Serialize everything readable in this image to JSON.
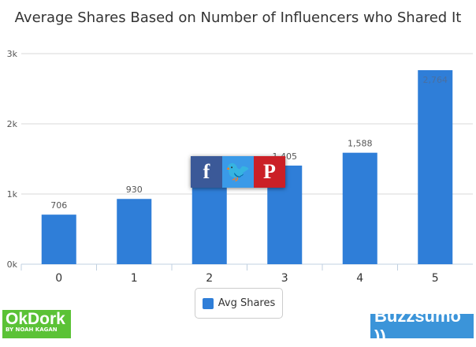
{
  "chart_data": {
    "type": "bar",
    "title": "Average Shares Based on Number of Influencers who Shared It",
    "categories": [
      "0",
      "1",
      "2",
      "3",
      "4",
      "5"
    ],
    "series": [
      {
        "name": "Avg Shares",
        "values": [
          706,
          930,
          1175,
          1405,
          1588,
          2764
        ]
      }
    ],
    "data_labels": [
      "706",
      "930",
      "",
      "1,405",
      "1,588",
      "2,764"
    ],
    "yticks": [
      "0k",
      "1k",
      "2k",
      "3k"
    ],
    "ylim": [
      0,
      3000
    ],
    "grid": true,
    "legend": "bottom",
    "color": "#2f7ed8"
  },
  "share": {
    "facebook": "f",
    "twitter": "t",
    "pinterest": "P"
  },
  "logos": {
    "okdork": "OkDork",
    "okdork_sub": "BY NOAH KAGAN",
    "buzzsumo": "Buzzsumo"
  }
}
